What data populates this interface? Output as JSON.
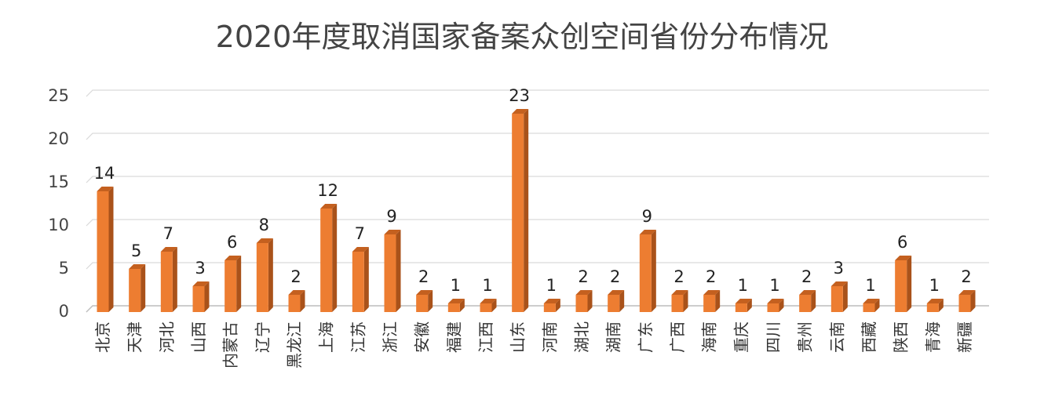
{
  "chart_data": {
    "type": "bar",
    "title": "2020年度取消国家备案众创空间省份分布情况",
    "xlabel": "",
    "ylabel": "",
    "ylim": [
      0,
      25
    ],
    "yticks": [
      0,
      5,
      10,
      15,
      20,
      25
    ],
    "grid": true,
    "legend": "none",
    "bar_color": "#ED7D31",
    "bar_side_color": "#A9521A",
    "bar_top_color": "#C4601F",
    "grid_color": "#D9D9D9",
    "categories": [
      "北京",
      "天津",
      "河北",
      "山西",
      "内蒙古",
      "辽宁",
      "黑龙江",
      "上海",
      "江苏",
      "浙江",
      "安徽",
      "福建",
      "江西",
      "山东",
      "河南",
      "湖北",
      "湖南",
      "广东",
      "广西",
      "海南",
      "重庆",
      "四川",
      "贵州",
      "云南",
      "西藏",
      "陕西",
      "青海",
      "新疆"
    ],
    "values": [
      14,
      5,
      7,
      3,
      6,
      8,
      2,
      12,
      7,
      9,
      2,
      1,
      1,
      23,
      1,
      2,
      2,
      9,
      2,
      2,
      1,
      1,
      2,
      3,
      1,
      6,
      1,
      2
    ]
  }
}
